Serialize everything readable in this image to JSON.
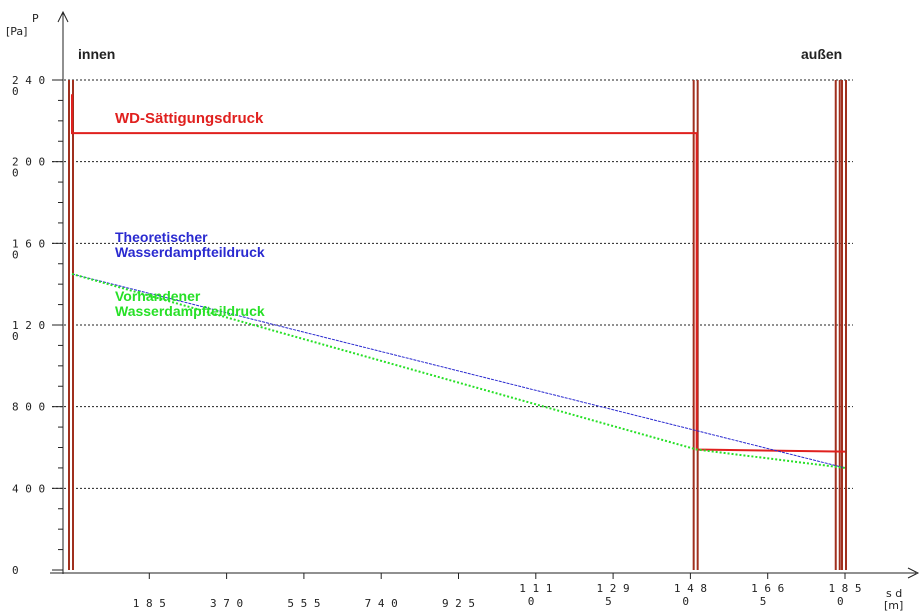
{
  "chart_data": {
    "type": "line",
    "title": "",
    "ylabel": "P",
    "yunit": "[Pa]",
    "xlabel": "s d",
    "xunit": "[m]",
    "side_left": "innen",
    "side_right": "außen",
    "ylim": [
      0,
      2400
    ],
    "xlim": [
      0,
      1850
    ],
    "y_ticks": [
      {
        "value": 0,
        "line1": "0",
        "line2": ""
      },
      {
        "value": 400,
        "line1": "4 0 0",
        "line2": ""
      },
      {
        "value": 800,
        "line1": "8 0 0",
        "line2": ""
      },
      {
        "value": 1200,
        "line1": "1 2 0",
        "line2": "0"
      },
      {
        "value": 1600,
        "line1": "1 6 0",
        "line2": "0"
      },
      {
        "value": 2000,
        "line1": "2 0 0",
        "line2": "0"
      },
      {
        "value": 2400,
        "line1": "2 4 0",
        "line2": "0"
      }
    ],
    "x_ticks": [
      {
        "value": 185,
        "line1": "",
        "line2": "1 8 5"
      },
      {
        "value": 370,
        "line1": "",
        "line2": "3 7 0"
      },
      {
        "value": 555,
        "line1": "",
        "line2": "5 5 5"
      },
      {
        "value": 740,
        "line1": "",
        "line2": "7 4 0"
      },
      {
        "value": 925,
        "line1": "",
        "line2": "9 2 5"
      },
      {
        "value": 1110,
        "line1": "1 1 1",
        "line2": "0"
      },
      {
        "value": 1295,
        "line1": "1 2 9",
        "line2": "5"
      },
      {
        "value": 1480,
        "line1": "1 4 8",
        "line2": "0"
      },
      {
        "value": 1665,
        "line1": "1 6 6",
        "line2": "5"
      },
      {
        "value": 1850,
        "line1": "1 8 5",
        "line2": "0"
      }
    ],
    "grid_y": [
      400,
      800,
      1200,
      1600,
      2000,
      2400
    ],
    "layer_boundaries": [
      0,
      1495,
      1835,
      1850
    ],
    "series": [
      {
        "name": "WD-Sättigungsdruck",
        "color": "#e0201e",
        "x": [
          0,
          0,
          1495,
          1495,
          1850
        ],
        "y": [
          2330,
          2140,
          2140,
          590,
          580
        ]
      },
      {
        "name": "Theoretischer Wasserdampfteildruck",
        "color": "#2a2ad0",
        "x": [
          0,
          1850
        ],
        "y": [
          1450,
          500
        ]
      },
      {
        "name": "Vorhandener Wasserdampfteildruck",
        "color": "#27e027",
        "x": [
          0,
          1495,
          1850
        ],
        "y": [
          1450,
          590,
          500
        ]
      }
    ]
  }
}
